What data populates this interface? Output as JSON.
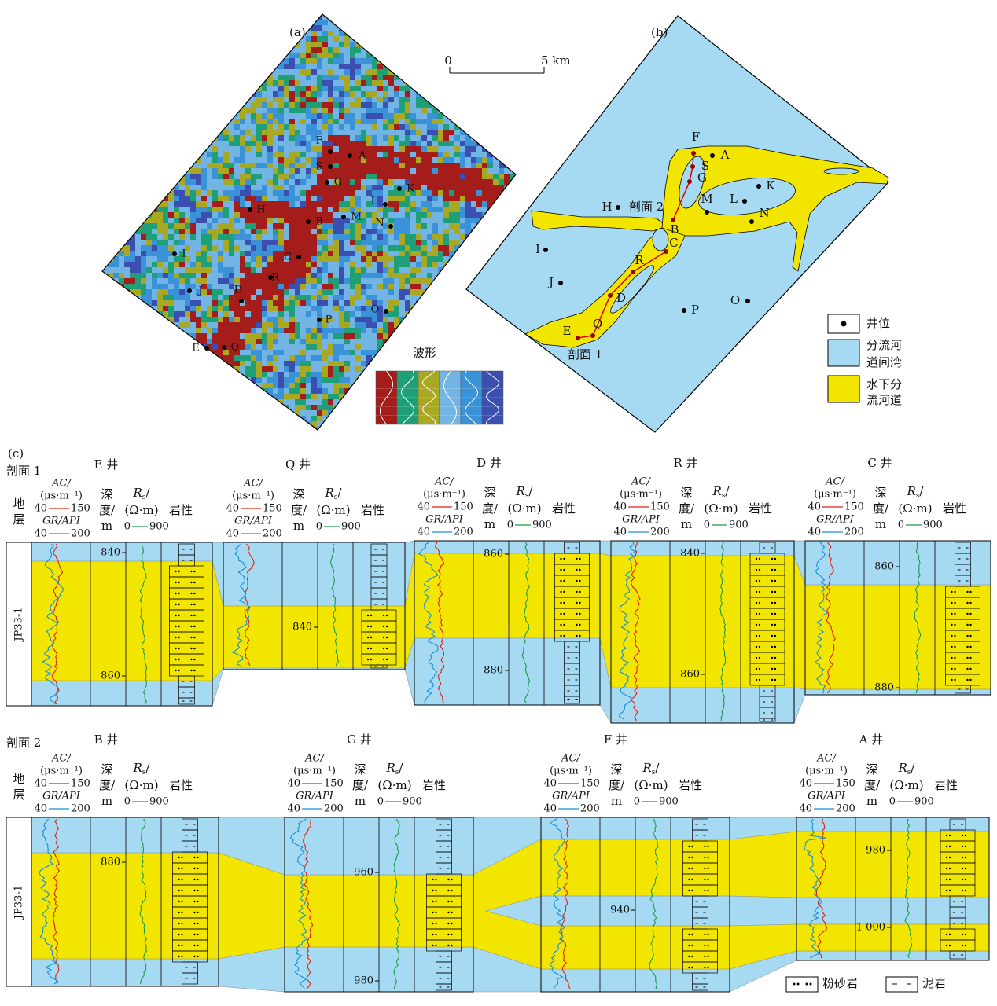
{
  "panel_a": {
    "label": "(a)",
    "scale_start": "0",
    "scale_end": "5 km",
    "legend_title": "波形",
    "wells": [
      "F",
      "A",
      "S",
      "G",
      "L",
      "K",
      "H",
      "M",
      "N",
      "B",
      "C",
      "I",
      "R",
      "J",
      "D",
      "P",
      "O",
      "E",
      "Q"
    ]
  },
  "panel_b": {
    "label": "(b)",
    "wells": [
      "F",
      "A",
      "S",
      "G",
      "L",
      "K",
      "H",
      "M",
      "N",
      "B",
      "C",
      "I",
      "R",
      "J",
      "D",
      "P",
      "O",
      "E",
      "Q"
    ],
    "section_labels": [
      "剖面 2",
      "剖面 1"
    ],
    "legend": [
      {
        "lines": [
          "井位"
        ]
      },
      {
        "lines": [
          "分流河",
          "道间湾"
        ]
      },
      {
        "lines": [
          "水下分",
          "流河道"
        ]
      }
    ]
  },
  "panel_c": {
    "label": "(c)",
    "stratum_header": [
      "地",
      "层"
    ],
    "layer": "JP33-1",
    "track_header": {
      "ac": "AC/",
      "ac_unit": "(μs·m⁻¹)",
      "ac_min": 40,
      "ac_max": 150,
      "gr": "GR/API",
      "gr_min": 40,
      "gr_max": 200,
      "depth": [
        "深",
        "度/",
        "m"
      ],
      "rs_symbol": "R",
      "rs_sub": "s",
      "rs_tail": "/",
      "rs_unit": "(Ω·m)",
      "rs_min": 0,
      "rs_max": 900,
      "lithology": "岩性"
    },
    "sections": [
      {
        "name": "剖面 1",
        "wells": [
          {
            "name": "E 井",
            "depth_ticks": [
              840,
              860
            ]
          },
          {
            "name": "Q 井",
            "depth_ticks": [
              840
            ]
          },
          {
            "name": "D 井",
            "depth_ticks": [
              860,
              880
            ]
          },
          {
            "name": "R 井",
            "depth_ticks": [
              840,
              860
            ]
          },
          {
            "name": "C 井",
            "depth_ticks": [
              860,
              880
            ]
          }
        ]
      },
      {
        "name": "剖面 2",
        "wells": [
          {
            "name": "B 井",
            "depth_ticks": [
              880
            ]
          },
          {
            "name": "G 井",
            "depth_ticks": [
              960,
              980
            ]
          },
          {
            "name": "F 井",
            "depth_ticks": [
              940
            ]
          },
          {
            "name": "A 井",
            "depth_ticks": [
              980,
              {
                "value": 1000,
                "label": "1 000"
              }
            ]
          }
        ]
      }
    ],
    "lithology_legend": [
      "粉砂岩",
      "泥岩"
    ]
  }
}
